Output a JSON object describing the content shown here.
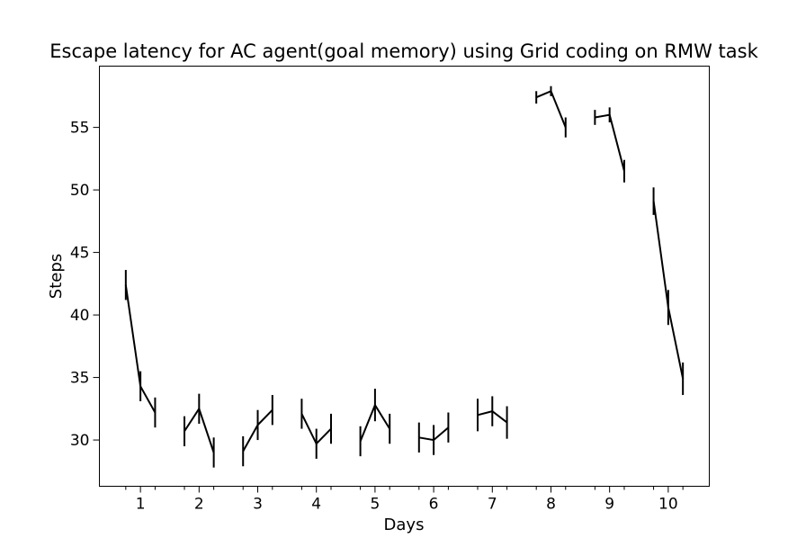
{
  "chart_data": {
    "type": "line",
    "title": "Escape latency for AC agent(goal memory) using Grid coding on RMW task",
    "xlabel": "Days",
    "ylabel": "Steps",
    "xlim": [
      0.3,
      10.7
    ],
    "ylim": [
      26.3,
      59.9
    ],
    "x_ticks": [
      1,
      2,
      3,
      4,
      5,
      6,
      7,
      8,
      9,
      10
    ],
    "y_ticks": [
      30,
      35,
      40,
      45,
      50,
      55
    ],
    "grid": false,
    "line_color": "#000000",
    "days": [
      {
        "day": 1,
        "x": [
          0.75,
          1.0,
          1.25
        ],
        "y": [
          42.4,
          34.3,
          32.2
        ],
        "err": [
          1.2,
          1.2,
          1.2
        ]
      },
      {
        "day": 2,
        "x": [
          1.75,
          2.0,
          2.25
        ],
        "y": [
          30.7,
          32.5,
          29.0
        ],
        "err": [
          1.2,
          1.2,
          1.2
        ]
      },
      {
        "day": 3,
        "x": [
          2.75,
          3.0,
          3.25
        ],
        "y": [
          29.1,
          31.2,
          32.4
        ],
        "err": [
          1.2,
          1.2,
          1.2
        ]
      },
      {
        "day": 4,
        "x": [
          3.75,
          4.0,
          4.25
        ],
        "y": [
          32.1,
          29.7,
          30.9
        ],
        "err": [
          1.2,
          1.2,
          1.2
        ]
      },
      {
        "day": 5,
        "x": [
          4.75,
          5.0,
          5.25
        ],
        "y": [
          29.9,
          32.8,
          30.9
        ],
        "err": [
          1.2,
          1.3,
          1.2
        ]
      },
      {
        "day": 6,
        "x": [
          5.75,
          6.0,
          6.25
        ],
        "y": [
          30.2,
          30.0,
          31.0
        ],
        "err": [
          1.2,
          1.2,
          1.2
        ]
      },
      {
        "day": 7,
        "x": [
          6.75,
          7.0,
          7.25
        ],
        "y": [
          32.0,
          32.3,
          31.4
        ],
        "err": [
          1.3,
          1.2,
          1.3
        ]
      },
      {
        "day": 8,
        "x": [
          7.75,
          8.0,
          8.25
        ],
        "y": [
          57.4,
          57.9,
          55.0
        ],
        "err": [
          0.5,
          0.4,
          0.8
        ]
      },
      {
        "day": 9,
        "x": [
          8.75,
          9.0,
          9.25
        ],
        "y": [
          55.8,
          56.0,
          51.5
        ],
        "err": [
          0.6,
          0.6,
          0.9
        ]
      },
      {
        "day": 10,
        "x": [
          9.75,
          10.0,
          10.25
        ],
        "y": [
          49.1,
          40.6,
          34.9
        ],
        "err": [
          1.1,
          1.4,
          1.3
        ]
      }
    ]
  }
}
